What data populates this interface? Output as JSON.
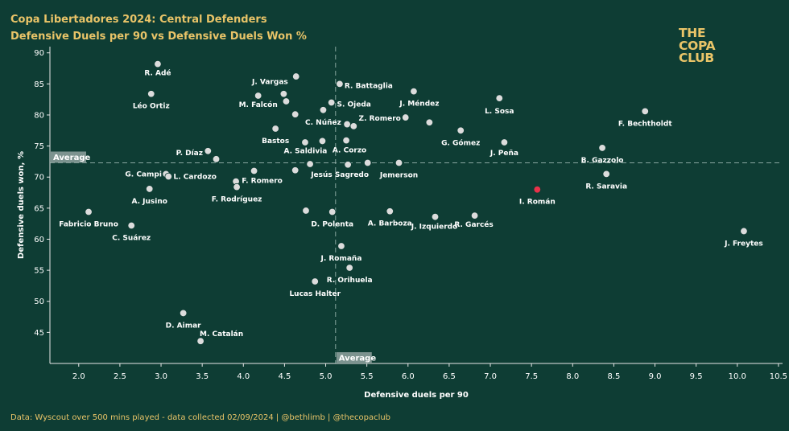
{
  "title": "Copa Libertadores 2024: Central Defenders",
  "subtitle": "Defensive Duels per 90 vs Defensive Duels Won %",
  "logo": [
    "THE",
    "COPA",
    "CLUB"
  ],
  "footer": "Data: Wyscout over 500 mins played - data collected 02/09/2024 | @bethlimb | @thecopaclub",
  "colors": {
    "background": "#0e3d34",
    "point": "#dcdcdc",
    "highlight": "#e8324a",
    "accent": "#e9c468"
  },
  "chart_data": {
    "type": "scatter",
    "xlabel": "Defensive duels per 90",
    "ylabel": "Defensive duels won, %",
    "xlim": [
      1.65,
      10.55
    ],
    "ylim": [
      40,
      91
    ],
    "xticks": [
      "2.0",
      "2.5",
      "3.0",
      "3.5",
      "4.0",
      "4.5",
      "5.0",
      "5.5",
      "6.0",
      "6.5",
      "7.0",
      "7.5",
      "8.0",
      "8.5",
      "9.0",
      "9.5",
      "10.0",
      "10.5"
    ],
    "yticks": [
      "45",
      "50",
      "55",
      "60",
      "65",
      "70",
      "75",
      "80",
      "85",
      "90"
    ],
    "reference_lines": {
      "x_average": 5.12,
      "y_average": 72.3,
      "x_label": "Average",
      "y_label": "Average"
    },
    "highlight": "I. Román",
    "points": [
      {
        "label": "R. Adé",
        "x": 2.96,
        "y": 88.2
      },
      {
        "label": "Léo Ortiz",
        "x": 2.88,
        "y": 83.4
      },
      {
        "label": "",
        "x": 4.64,
        "y": 86.2
      },
      {
        "label": "J. Vargas",
        "x": 4.49,
        "y": 83.4
      },
      {
        "label": "M. Falcón",
        "x": 4.18,
        "y": 83.1
      },
      {
        "label": "",
        "x": 4.52,
        "y": 82.2
      },
      {
        "label": "R. Battaglia",
        "x": 5.17,
        "y": 85.0
      },
      {
        "label": "J. Méndez",
        "x": 6.07,
        "y": 83.8
      },
      {
        "label": "S. Ojeda",
        "x": 5.07,
        "y": 82.0
      },
      {
        "label": "",
        "x": 4.63,
        "y": 80.1
      },
      {
        "label": "C. Núñez",
        "x": 4.97,
        "y": 80.8
      },
      {
        "label": "Z. Romero",
        "x": 5.97,
        "y": 79.6
      },
      {
        "label": "",
        "x": 5.26,
        "y": 78.5
      },
      {
        "label": "",
        "x": 5.34,
        "y": 78.2
      },
      {
        "label": "",
        "x": 6.26,
        "y": 78.8
      },
      {
        "label": "Bastos",
        "x": 4.39,
        "y": 77.8
      },
      {
        "label": "A. Corzo",
        "x": 5.25,
        "y": 75.9
      },
      {
        "label": "G. Gómez",
        "x": 6.64,
        "y": 77.5
      },
      {
        "label": "J. Peña",
        "x": 7.17,
        "y": 75.6
      },
      {
        "label": "",
        "x": 4.75,
        "y": 75.6
      },
      {
        "label": "A. Saldivia",
        "x": 4.96,
        "y": 75.8
      },
      {
        "label": "P. Díaz",
        "x": 3.57,
        "y": 74.2
      },
      {
        "label": "",
        "x": 3.67,
        "y": 72.9
      },
      {
        "label": "",
        "x": 4.81,
        "y": 72.1
      },
      {
        "label": "Jesús Sagredo",
        "x": 5.27,
        "y": 72.0
      },
      {
        "label": "",
        "x": 5.51,
        "y": 72.3
      },
      {
        "label": "Jemerson",
        "x": 5.89,
        "y": 72.3
      },
      {
        "label": "",
        "x": 4.63,
        "y": 71.1
      },
      {
        "label": "F. Romero",
        "x": 4.13,
        "y": 71.0
      },
      {
        "label": "G. Campi",
        "x": 3.06,
        "y": 70.5
      },
      {
        "label": "L. Cardozo",
        "x": 3.09,
        "y": 70.1
      },
      {
        "label": "",
        "x": 3.91,
        "y": 69.3
      },
      {
        "label": "F. Rodríguez",
        "x": 3.92,
        "y": 68.4
      },
      {
        "label": "A. Jusino",
        "x": 2.86,
        "y": 68.1
      },
      {
        "label": "I. Román",
        "x": 7.57,
        "y": 68.0
      },
      {
        "label": "Fabricio Bruno",
        "x": 2.12,
        "y": 64.4
      },
      {
        "label": "C. Suárez",
        "x": 2.64,
        "y": 62.2
      },
      {
        "label": "",
        "x": 4.76,
        "y": 64.6
      },
      {
        "label": "D. Polenta",
        "x": 5.08,
        "y": 64.4
      },
      {
        "label": "A. Barboza",
        "x": 5.78,
        "y": 64.5
      },
      {
        "label": "J. Izquierdo",
        "x": 6.33,
        "y": 63.6
      },
      {
        "label": "R. Garcés",
        "x": 6.81,
        "y": 63.8
      },
      {
        "label": "J. Freytes",
        "x": 10.08,
        "y": 61.3
      },
      {
        "label": "J. Romaña",
        "x": 5.19,
        "y": 58.9
      },
      {
        "label": "R. Orihuela",
        "x": 5.29,
        "y": 55.4
      },
      {
        "label": "Lucas Halter",
        "x": 4.87,
        "y": 53.2
      },
      {
        "label": "D. Aimar",
        "x": 3.27,
        "y": 48.1
      },
      {
        "label": "M. Catalán",
        "x": 3.48,
        "y": 43.6
      },
      {
        "label": "L. Sosa",
        "x": 7.11,
        "y": 82.7
      },
      {
        "label": "F. Bechtholdt",
        "x": 8.88,
        "y": 80.6
      },
      {
        "label": "B. Gazzolo",
        "x": 8.36,
        "y": 74.7
      },
      {
        "label": "R. Saravia",
        "x": 8.41,
        "y": 70.5
      }
    ]
  }
}
